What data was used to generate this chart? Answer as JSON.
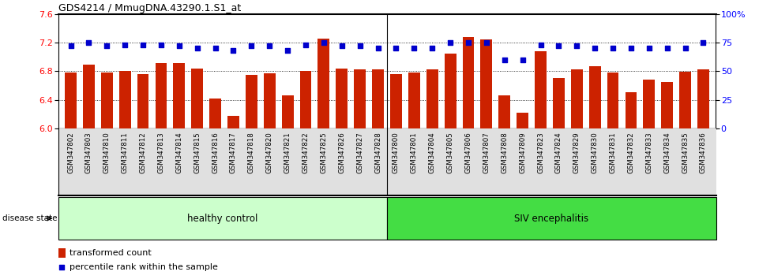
{
  "title": "GDS4214 / MmugDNA.43290.1.S1_at",
  "samples": [
    "GSM347802",
    "GSM347803",
    "GSM347810",
    "GSM347811",
    "GSM347812",
    "GSM347813",
    "GSM347814",
    "GSM347815",
    "GSM347816",
    "GSM347817",
    "GSM347818",
    "GSM347820",
    "GSM347821",
    "GSM347822",
    "GSM347825",
    "GSM347826",
    "GSM347827",
    "GSM347828",
    "GSM347800",
    "GSM347801",
    "GSM347804",
    "GSM347805",
    "GSM347806",
    "GSM347807",
    "GSM347808",
    "GSM347809",
    "GSM347823",
    "GSM347824",
    "GSM347829",
    "GSM347830",
    "GSM347831",
    "GSM347832",
    "GSM347833",
    "GSM347834",
    "GSM347835",
    "GSM347836"
  ],
  "bar_values": [
    6.78,
    6.89,
    6.78,
    6.8,
    6.76,
    6.91,
    6.91,
    6.84,
    6.42,
    6.18,
    6.75,
    6.77,
    6.46,
    6.8,
    7.25,
    6.84,
    6.82,
    6.82,
    6.76,
    6.78,
    6.82,
    7.05,
    7.28,
    7.24,
    6.46,
    6.22,
    7.08,
    6.7,
    6.83,
    6.87,
    6.78,
    6.5,
    6.68,
    6.65,
    6.79,
    6.82
  ],
  "percentile_values": [
    72,
    75,
    72,
    73,
    73,
    73,
    72,
    70,
    70,
    68,
    72,
    72,
    68,
    73,
    75,
    72,
    72,
    70,
    70,
    70,
    70,
    75,
    75,
    75,
    60,
    60,
    73,
    72,
    72,
    70,
    70,
    70,
    70,
    70,
    70,
    75
  ],
  "healthy_count": 18,
  "siv_count": 18,
  "bar_color": "#CC2200",
  "dot_color": "#0000CC",
  "ylim_left": [
    6.0,
    7.6
  ],
  "ylim_right": [
    0,
    100
  ],
  "yticks_left": [
    6.0,
    6.4,
    6.8,
    7.2,
    7.6
  ],
  "yticks_right": [
    0,
    25,
    50,
    75,
    100
  ],
  "healthy_color": "#CCFFCC",
  "siv_color": "#44DD44",
  "label_bg_color": "#E0E0E0",
  "disease_label_healthy": "healthy control",
  "disease_label_siv": "SIV encephalitis",
  "legend_bar_label": "transformed count",
  "legend_dot_label": "percentile rank within the sample",
  "grid_lines": [
    6.4,
    6.8,
    7.2
  ]
}
